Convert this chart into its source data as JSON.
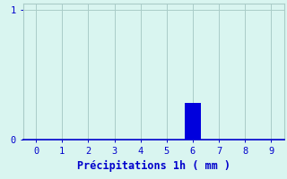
{
  "title": "",
  "xlabel": "Précipitations 1h ( mm )",
  "ylabel": "",
  "xlim": [
    -0.5,
    9.5
  ],
  "ylim": [
    0,
    1.05
  ],
  "xticks": [
    0,
    1,
    2,
    3,
    4,
    5,
    6,
    7,
    8,
    9
  ],
  "yticks": [
    0,
    1
  ],
  "bar_x": [
    6
  ],
  "bar_height": [
    0.28
  ],
  "bar_color": "#0000dd",
  "bar_width": 0.6,
  "background_color": "#d9f5f0",
  "grid_color": "#aaccc8",
  "axis_color": "#0000cc",
  "text_color": "#0000cc",
  "font_size": 7.5,
  "xlabel_fontsize": 8.5
}
